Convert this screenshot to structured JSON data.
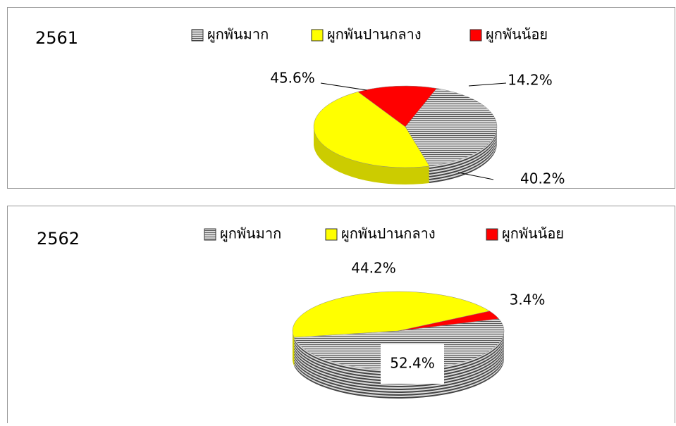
{
  "chart_data": [
    {
      "type": "pie",
      "title": "2561",
      "categories": [
        "ผูกพันมาก",
        "ผูกพันปานกลาง",
        "ผูกพันน้อย"
      ],
      "values": [
        40.2,
        45.6,
        14.2
      ],
      "value_labels": [
        "40.2%",
        "45.6%",
        "14.2%"
      ],
      "colors": [
        "#a6a6a6",
        "#ffff00",
        "#ff0000"
      ]
    },
    {
      "type": "pie",
      "title": "2562",
      "categories": [
        "ผูกพันมาก",
        "ผูกพันปานกลาง",
        "ผูกพันน้อย"
      ],
      "values": [
        52.4,
        44.2,
        3.4
      ],
      "value_labels": [
        "52.4%",
        "44.2%",
        "3.4%"
      ],
      "colors": [
        "#a6a6a6",
        "#ffff00",
        "#ff0000"
      ]
    }
  ]
}
